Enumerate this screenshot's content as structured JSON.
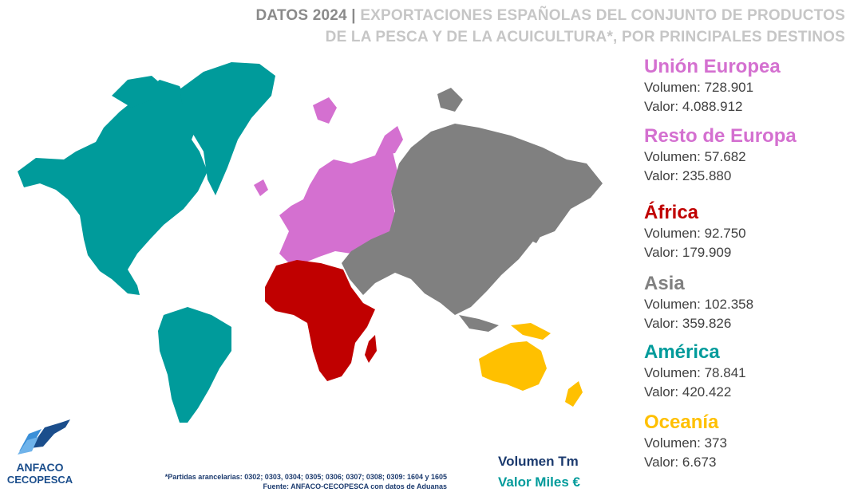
{
  "header": {
    "lead": "DATOS 2024",
    "separator": "|",
    "title_line1": "EXPORTACIONES ESPAÑOLAS DEL CONJUNTO DE PRODUCTOS",
    "title_line2": "DE LA PESCA Y DE LA ACUICULTURA*, POR PRINCIPALES DESTINOS"
  },
  "colors": {
    "union_europea": "#d470d0",
    "resto_europa": "#d470d0",
    "africa": "#c00000",
    "asia": "#808080",
    "america": "#009b9b",
    "oceania": "#ffc000",
    "volumen": "#1b3a6e",
    "valor": "#009b9b"
  },
  "regions": [
    {
      "name": "Unión Europea",
      "volumen_label": "Volumen: 728.901",
      "valor_label": "Valor: 4.088.912",
      "color": "#d470d0"
    },
    {
      "name": "Resto de Europa",
      "volumen_label": "Volumen: 57.682",
      "valor_label": "Valor: 235.880",
      "color": "#d470d0"
    },
    {
      "name": "África",
      "volumen_label": "Volumen: 92.750",
      "valor_label": "Valor: 179.909",
      "color": "#c00000"
    },
    {
      "name": "Asia",
      "volumen_label": "Volumen: 102.358",
      "valor_label": "Valor: 359.826",
      "color": "#808080"
    },
    {
      "name": "América",
      "volumen_label": "Volumen: 78.841",
      "valor_label": "Valor: 420.422",
      "color": "#009b9b"
    },
    {
      "name": "Oceanía",
      "volumen_label": "Volumen: 373",
      "valor_label": "Valor: 6.673",
      "color": "#ffc000"
    }
  ],
  "units": {
    "volumen": "Volumen Tm",
    "valor": "Valor Miles €"
  },
  "footnote": {
    "line1": "*Partidas arancelarias: 0302; 0303, 0304; 0305; 0306; 0307; 0308; 0309: 1604 y 1605",
    "line2": "Fuente: ANFACO-CECOPESCA con datos de Aduanas"
  },
  "logo": {
    "line1": "ANFACO",
    "line2": "CECOPESCA"
  }
}
